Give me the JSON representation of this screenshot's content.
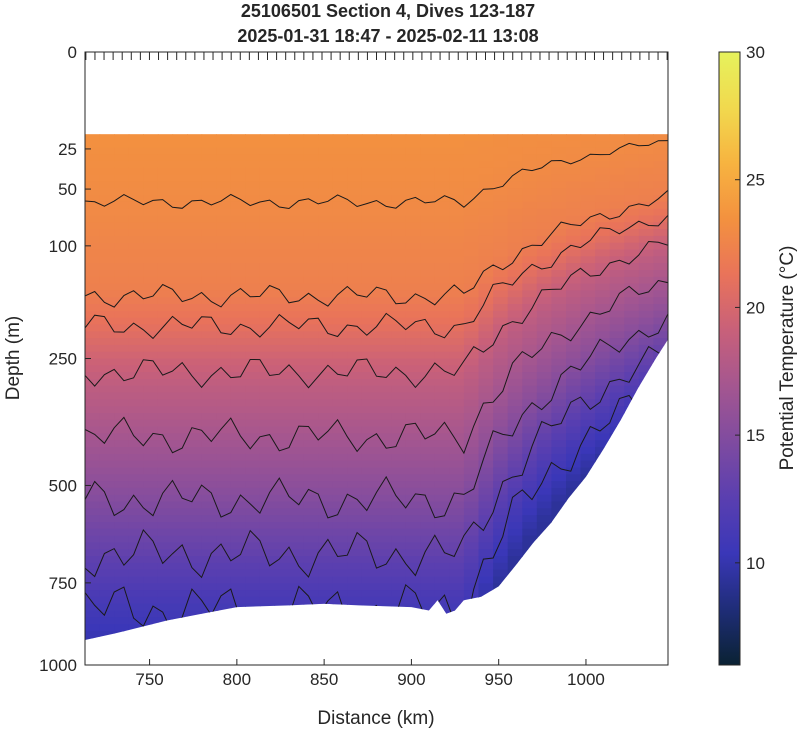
{
  "chart_data": {
    "type": "heatmap",
    "title": "25106501 Section 4, Dives 123-187",
    "subtitle": "2025-01-31 18:47 - 2025-02-11 13:08",
    "xlabel": "Distance (km)",
    "ylabel": "Depth (m)",
    "colorbar_label": "Potential Temperature (°C)",
    "xlim": [
      713,
      1047
    ],
    "ylim": [
      0,
      1000
    ],
    "y_scale": "sqrt",
    "x_ticks": [
      "750",
      "800",
      "850",
      "900",
      "950",
      "1000"
    ],
    "y_ticks": [
      "0",
      "25",
      "50",
      "100",
      "250",
      "500",
      "750",
      "1000"
    ],
    "clim": [
      6,
      30
    ],
    "colorbar_ticks": [
      "10",
      "15",
      "20",
      "25",
      "30"
    ],
    "colormap": [
      "#0a2233",
      "#1f2d78",
      "#3a37b8",
      "#5a3fb0",
      "#7f4ba0",
      "#a45690",
      "#c8607a",
      "#e9735a",
      "#f3913f",
      "#f7b340",
      "#f1d94e",
      "#e6f25c"
    ],
    "data_top_depth": 18,
    "temperature_profile": {
      "depths": [
        18,
        25,
        50,
        100,
        150,
        200,
        250,
        300,
        400,
        500,
        600,
        700,
        800,
        900,
        1000
      ],
      "temps": [
        23.5,
        23.3,
        23.1,
        22.6,
        22.2,
        21.0,
        19.5,
        18.4,
        16.9,
        15.5,
        14.0,
        12.6,
        11.3,
        10.2,
        9.3
      ]
    },
    "contour_levels": [
      11,
      13,
      15,
      17,
      19,
      21,
      22,
      23
    ],
    "bottom_boundary": {
      "x": [
        713,
        730,
        760,
        780,
        800,
        830,
        850,
        870,
        900,
        910,
        915,
        920,
        925,
        930,
        940,
        950,
        960,
        970,
        980,
        990,
        1000,
        1010,
        1020,
        1030,
        1040,
        1047
      ],
      "depth": [
        920,
        900,
        860,
        840,
        820,
        815,
        810,
        815,
        820,
        830,
        800,
        840,
        830,
        800,
        790,
        760,
        700,
        640,
        590,
        530,
        480,
        420,
        360,
        300,
        250,
        220
      ]
    },
    "dive_ticks": 65
  }
}
